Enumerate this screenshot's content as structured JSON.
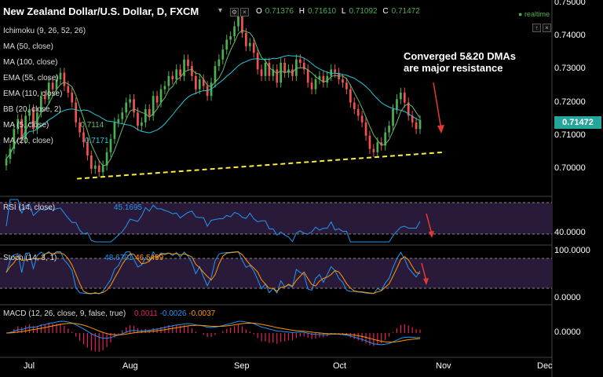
{
  "header": {
    "title": "New Zealand Dollar/U.S. Dollar, D, FXCM",
    "title_dropdown": "▾",
    "o_label": "O",
    "o_value": "0.71376",
    "h_label": "H",
    "h_value": "0.71610",
    "l_label": "L",
    "l_value": "0.71092",
    "c_label": "C",
    "c_value": "0.71472",
    "realtime": "realtime"
  },
  "indicators": [
    {
      "label": "Ichimoku (9, 26, 52, 26)"
    },
    {
      "label": "MA (50, close)"
    },
    {
      "label": "MA (100, close)"
    },
    {
      "label": "EMA (55, close)"
    },
    {
      "label": "EMA (110, close)"
    },
    {
      "label": "BB (20, close, 2)"
    },
    {
      "label": "MA (5, close)",
      "value": "0.7114"
    },
    {
      "label": "MA (20, close)",
      "value": "0.7171"
    }
  ],
  "rsi": {
    "label": "RSI (14, close)",
    "value": "45.1695"
  },
  "stoch": {
    "label": "Stoch (14, 3, 1)",
    "k": "48.6791",
    "d": "46.5499"
  },
  "macd": {
    "label": "MACD (12, 26, close, 9, false, true)",
    "v1": "0.0011",
    "v2": "-0.0026",
    "v3": "-0.0037"
  },
  "annotation": {
    "line1": "Converged 5&20 DMAs",
    "line2": "are major resistance"
  },
  "current_price": "0.71472",
  "colors": {
    "up": "#4caf50",
    "down": "#ef5350",
    "ma": "#26c6da",
    "ma5": "#66bb6a",
    "trend": "#ffeb3b",
    "arrow": "#e53935",
    "rsi": "#2196f3",
    "stoch_k": "#2196f3",
    "stoch_d": "#ff9800",
    "panel": "#2a1a3a"
  },
  "chart_data": {
    "type": "candlestick",
    "ylim": [
      0.695,
      0.75
    ],
    "yticks": [
      "0.75000",
      "0.74000",
      "0.73000",
      "0.72000",
      "0.71000",
      "0.70000"
    ],
    "xticks": [
      "Jul",
      "Aug",
      "Sep",
      "Oct",
      "Nov",
      "Dec"
    ],
    "rsi_ticks": [
      "40.0000"
    ],
    "stoch_ticks": [
      "100.0000",
      "0.0000"
    ],
    "macd_ticks": [
      "0.0000"
    ],
    "close": [
      0.703,
      0.706,
      0.712,
      0.715,
      0.709,
      0.716,
      0.718,
      0.712,
      0.717,
      0.722,
      0.721,
      0.726,
      0.724,
      0.727,
      0.729,
      0.725,
      0.723,
      0.72,
      0.714,
      0.711,
      0.708,
      0.704,
      0.7,
      0.701,
      0.699,
      0.701,
      0.705,
      0.709,
      0.714,
      0.715,
      0.717,
      0.72,
      0.721,
      0.717,
      0.713,
      0.714,
      0.718,
      0.716,
      0.722,
      0.72,
      0.724,
      0.725,
      0.728,
      0.727,
      0.73,
      0.728,
      0.733,
      0.731,
      0.728,
      0.724,
      0.727,
      0.725,
      0.722,
      0.726,
      0.731,
      0.733,
      0.736,
      0.739,
      0.74,
      0.743,
      0.746,
      0.741,
      0.737,
      0.738,
      0.735,
      0.73,
      0.728,
      0.732,
      0.728,
      0.73,
      0.726,
      0.732,
      0.729,
      0.73,
      0.728,
      0.733,
      0.732,
      0.73,
      0.726,
      0.724,
      0.727,
      0.728,
      0.726,
      0.728,
      0.73,
      0.729,
      0.727,
      0.726,
      0.724,
      0.72,
      0.718,
      0.716,
      0.714,
      0.71,
      0.706,
      0.705,
      0.708,
      0.707,
      0.711,
      0.713,
      0.718,
      0.721,
      0.723,
      0.72,
      0.716,
      0.714,
      0.712,
      0.7147
    ],
    "trendline": [
      [
        0.697,
        0.705
      ]
    ],
    "rsi_ylim": [
      20,
      80
    ],
    "stoch_ylim": [
      0,
      100
    ]
  }
}
